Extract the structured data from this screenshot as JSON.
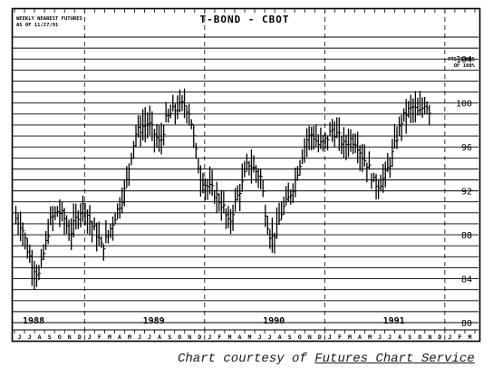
{
  "chart_data": {
    "type": "ohlc",
    "title": "T-BOND - CBOT",
    "subtitle_lines": [
      "WEEKLY NEAREST FUTURES",
      "AS OF 11/27/91"
    ],
    "units_label_lines": [
      "PTS-32NDS",
      "OF 100%"
    ],
    "ylim": [
      80,
      106
    ],
    "y_ticks": [
      80,
      84,
      88,
      92,
      96,
      100,
      104
    ],
    "y_tick_labels": [
      "80",
      "84",
      "88",
      "92",
      "96",
      "100",
      "104"
    ],
    "grid": true,
    "month_labels": [
      "J",
      "J",
      "A",
      "S",
      "O",
      "N",
      "D",
      "J",
      "F",
      "M",
      "A",
      "M",
      "J",
      "J",
      "A",
      "S",
      "O",
      "N",
      "D",
      "J",
      "F",
      "M",
      "A",
      "M",
      "J",
      "J",
      "A",
      "S",
      "O",
      "N",
      "D",
      "J",
      "F",
      "M",
      "A",
      "M",
      "J",
      "J",
      "A",
      "S",
      "O",
      "N",
      "D",
      "J",
      "F",
      "M"
    ],
    "year_labels": [
      {
        "label": "1988",
        "month_index": 1
      },
      {
        "label": "1989",
        "month_index": 13
      },
      {
        "label": "1990",
        "month_index": 25
      },
      {
        "label": "1991",
        "month_index": 37
      }
    ],
    "year_divider_month_indices": [
      7,
      19,
      31,
      43
    ],
    "price_path": [
      [
        0,
        89.5
      ],
      [
        0.6,
        88.8
      ],
      [
        1.2,
        86.5
      ],
      [
        1.7,
        85.2
      ],
      [
        2.3,
        84.3
      ],
      [
        2.9,
        86.8
      ],
      [
        3.5,
        89.4
      ],
      [
        4.2,
        90.2
      ],
      [
        4.8,
        89.6
      ],
      [
        5.4,
        88.0
      ],
      [
        6.1,
        89.6
      ],
      [
        6.8,
        90.8
      ],
      [
        7.5,
        88.9
      ],
      [
        8.0,
        88.3
      ],
      [
        8.6,
        86.8
      ],
      [
        9.2,
        87.9
      ],
      [
        9.8,
        89.4
      ],
      [
        10.4,
        90.8
      ],
      [
        11.0,
        92.4
      ],
      [
        11.5,
        95.2
      ],
      [
        12.0,
        97.2
      ],
      [
        12.6,
        97.8
      ],
      [
        13.2,
        98.2
      ],
      [
        13.8,
        97.3
      ],
      [
        14.4,
        96.2
      ],
      [
        15.0,
        98.4
      ],
      [
        15.6,
        99.2
      ],
      [
        16.2,
        99.6
      ],
      [
        16.8,
        99.9
      ],
      [
        17.4,
        99.1
      ],
      [
        17.9,
        96.0
      ],
      [
        18.4,
        93.4
      ],
      [
        19.0,
        92.5
      ],
      [
        19.6,
        92.1
      ],
      [
        20.2,
        91.3
      ],
      [
        20.8,
        90.4
      ],
      [
        21.3,
        88.8
      ],
      [
        21.9,
        90.9
      ],
      [
        22.6,
        92.6
      ],
      [
        23.2,
        94.6
      ],
      [
        23.9,
        93.9
      ],
      [
        24.5,
        93.2
      ],
      [
        25.0,
        89.6
      ],
      [
        25.5,
        87.6
      ],
      [
        26.0,
        88.3
      ],
      [
        26.6,
        90.2
      ],
      [
        27.2,
        91.2
      ],
      [
        27.8,
        92.6
      ],
      [
        28.4,
        94.6
      ],
      [
        29.0,
        96.6
      ],
      [
        29.6,
        97.2
      ],
      [
        30.3,
        96.1
      ],
      [
        31.0,
        96.6
      ],
      [
        31.6,
        97.6
      ],
      [
        32.2,
        97.0
      ],
      [
        32.8,
        96.1
      ],
      [
        33.4,
        96.7
      ],
      [
        34.0,
        96.5
      ],
      [
        34.6,
        95.2
      ],
      [
        35.2,
        94.3
      ],
      [
        35.8,
        92.7
      ],
      [
        36.3,
        92.6
      ],
      [
        36.8,
        93.2
      ],
      [
        37.3,
        94.3
      ],
      [
        37.9,
        96.3
      ],
      [
        38.5,
        98.3
      ],
      [
        39.1,
        99.2
      ],
      [
        39.7,
        99.6
      ],
      [
        40.3,
        99.0
      ],
      [
        40.9,
        100.1
      ],
      [
        41.4,
        99.2
      ]
    ]
  },
  "credit": {
    "prefix": "Chart courtesy of ",
    "source": "Futures Chart Service"
  }
}
